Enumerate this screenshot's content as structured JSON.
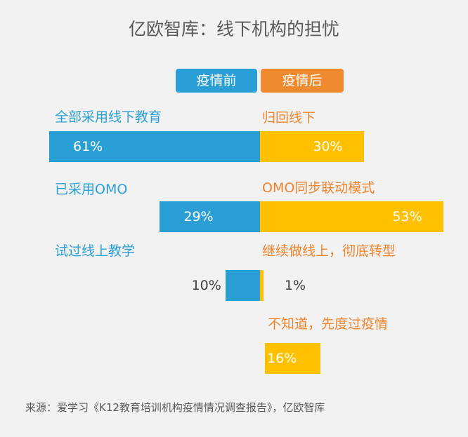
{
  "title": "亿欧智库：线下机构的担忧",
  "source": "来源：爱学习《K12教育培训机构疫情情况调查报告》，亿欧智库",
  "colors": {
    "before": "#2a9fd6",
    "after": "#ffc000",
    "after_label": "#f0842c",
    "legend_after_bg": "#f08a2f"
  },
  "chart_data": {
    "type": "bar",
    "orientation": "horizontal-diverging",
    "xlim": [
      -61,
      61
    ],
    "legend": [
      "疫情前",
      "疫情后"
    ],
    "series": [
      {
        "name": "疫情前",
        "categories": [
          "全部采用线下教育",
          "已采用OMO",
          "试过线上教学"
        ],
        "values": [
          61,
          29,
          10
        ],
        "labels": [
          "61%",
          "29%",
          "10%"
        ]
      },
      {
        "name": "疫情后",
        "categories": [
          "归回线下",
          "OMO同步联动模式",
          "继续做线上，彻底转型",
          "不知道，先度过疫情"
        ],
        "values": [
          30,
          53,
          1,
          16
        ],
        "labels": [
          "30%",
          "53%",
          "1%",
          "16%"
        ]
      }
    ]
  }
}
